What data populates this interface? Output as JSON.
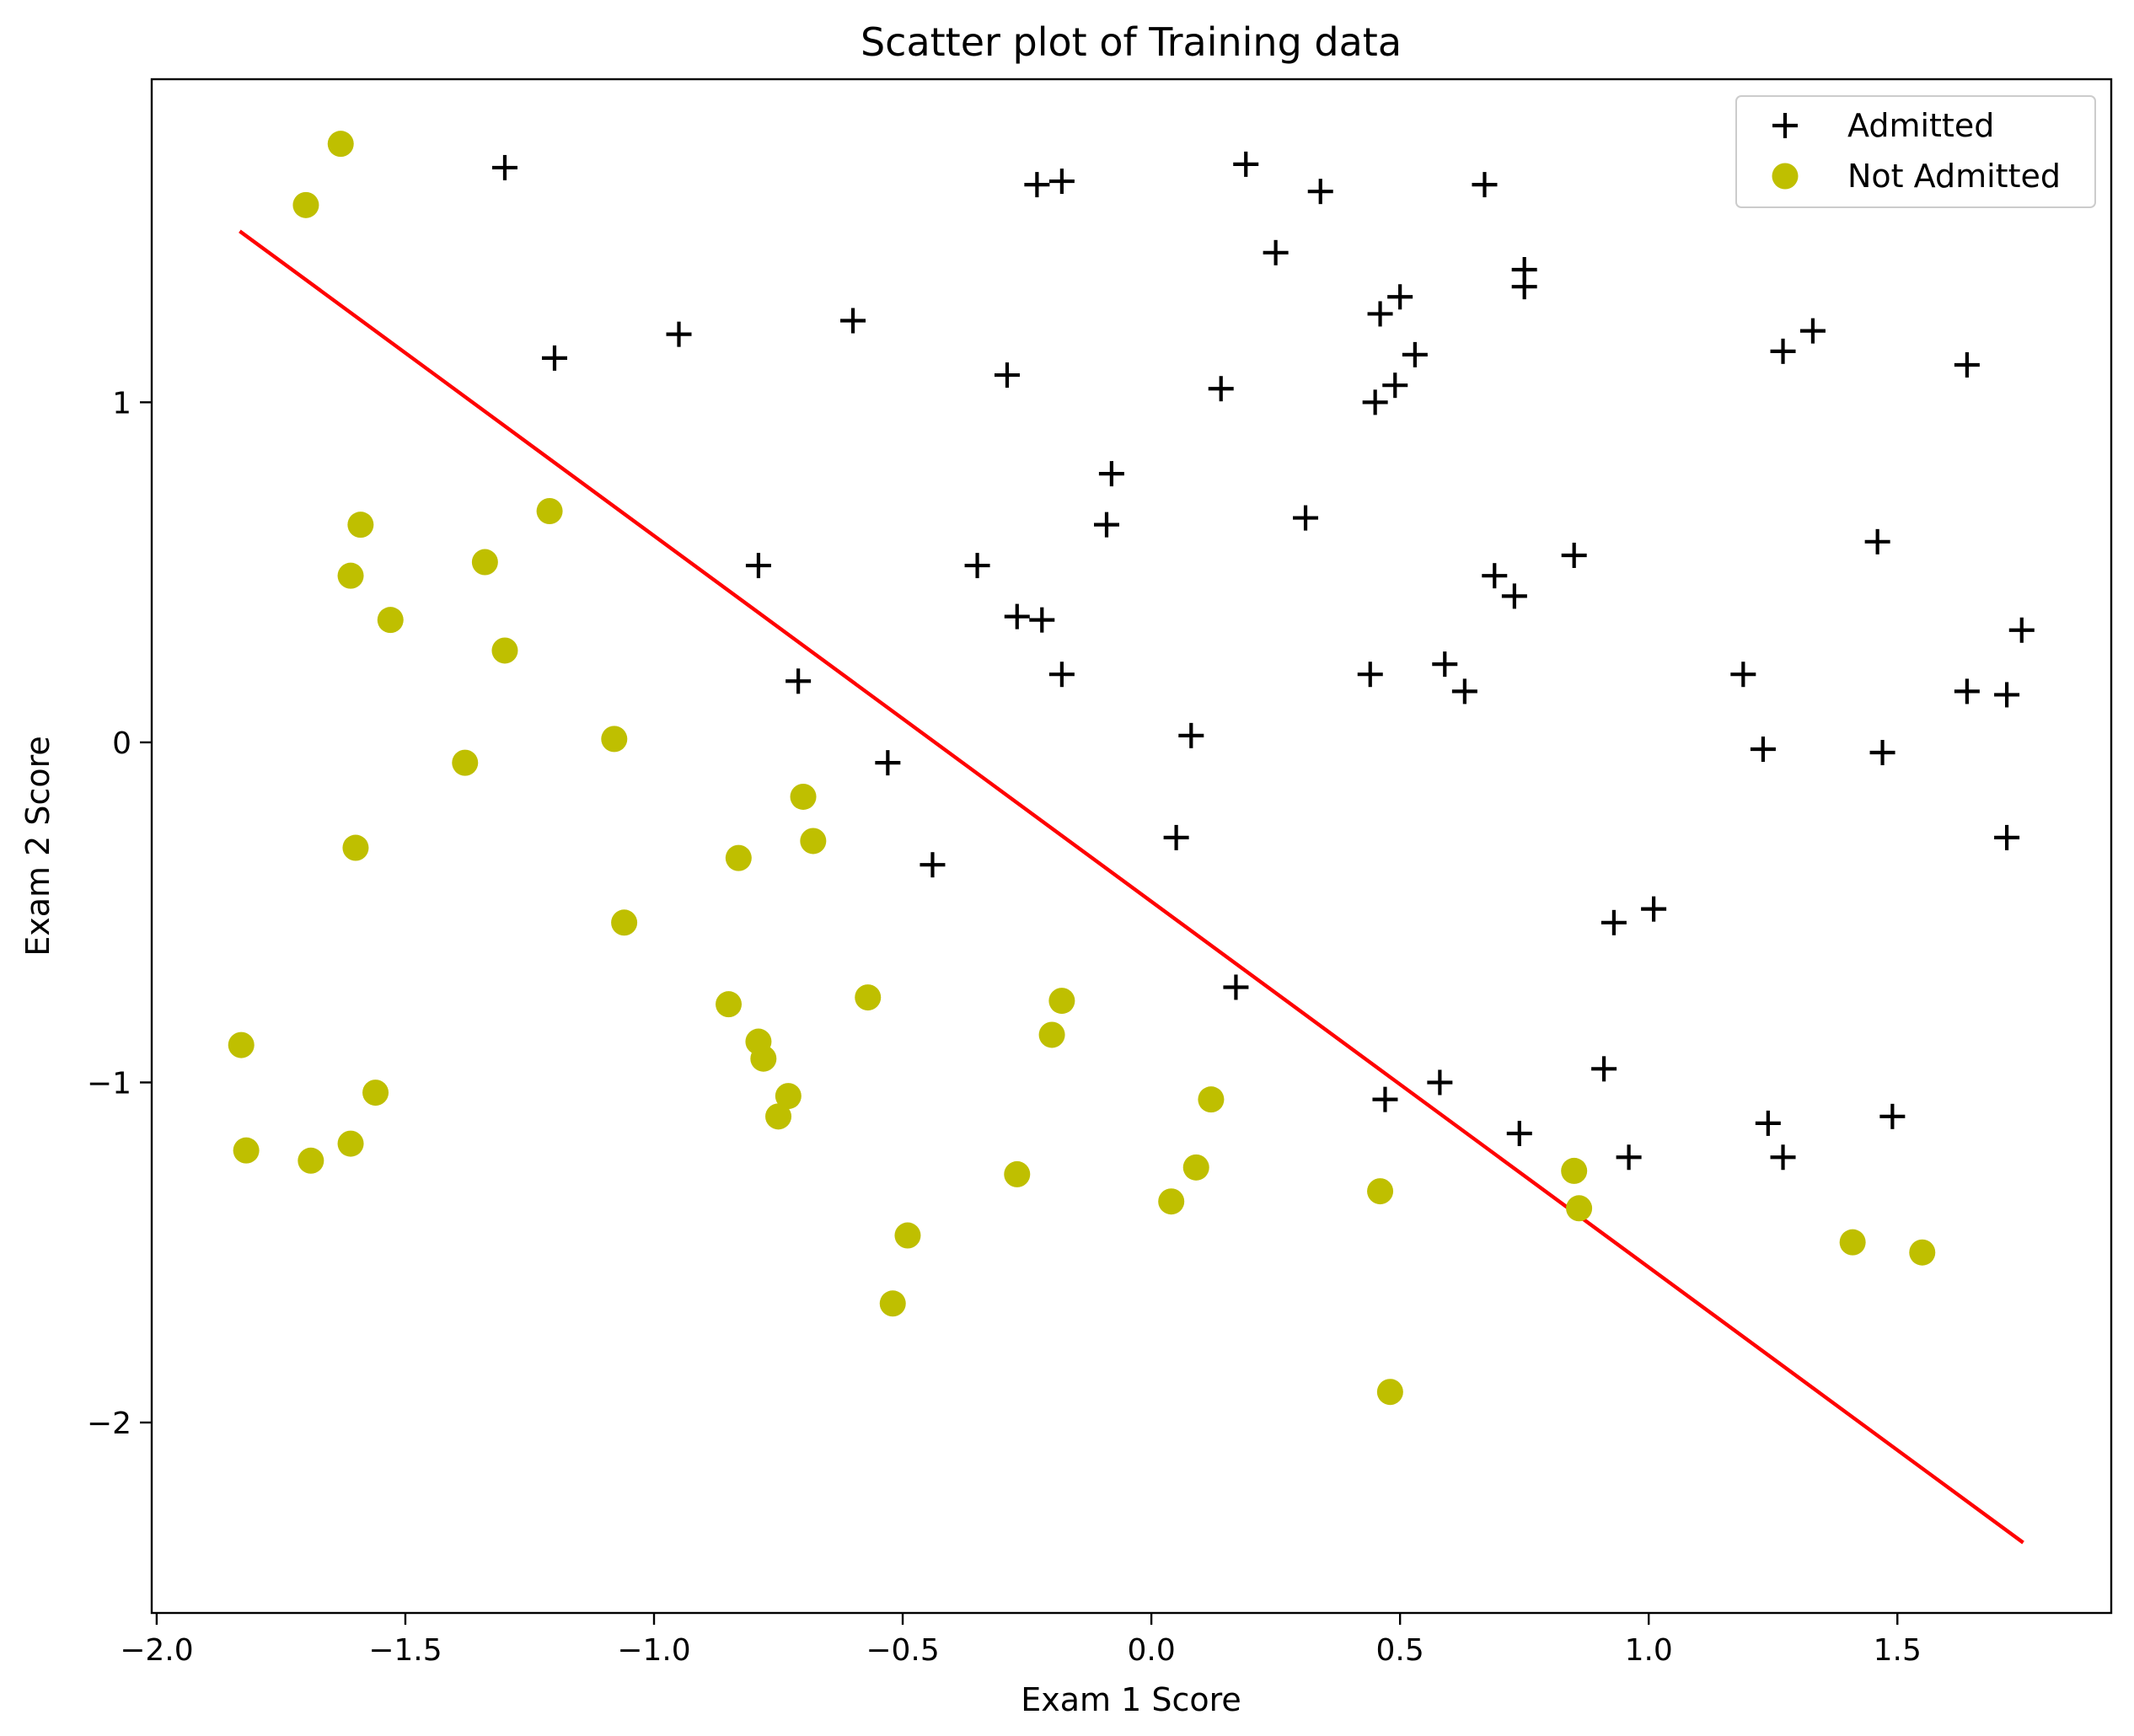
{
  "chart_data": {
    "type": "scatter",
    "title": "Scatter plot of Training data",
    "xlabel": "Exam 1 Score",
    "ylabel": "Exam 2 Score",
    "xlim": [
      -2.01,
      1.93
    ],
    "ylim": [
      -2.56,
      1.95
    ],
    "xticks": [
      -2.0,
      -1.5,
      -1.0,
      -0.5,
      0.0,
      0.5,
      1.0,
      1.5
    ],
    "xtick_labels": [
      "−2.0",
      "−1.5",
      "−1.0",
      "−0.5",
      "0.0",
      "0.5",
      "1.0",
      "1.5"
    ],
    "yticks": [
      -2,
      -1,
      0,
      1
    ],
    "ytick_labels": [
      "−2",
      "−1",
      "0",
      "1"
    ],
    "grid": false,
    "legend_position": "top-right",
    "series": [
      {
        "name": "Admitted",
        "marker": "plus",
        "color": "#000000",
        "points": [
          [
            -1.3,
            1.69
          ],
          [
            -0.23,
            1.64
          ],
          [
            -0.18,
            1.65
          ],
          [
            0.19,
            1.7
          ],
          [
            0.34,
            1.62
          ],
          [
            0.67,
            1.64
          ],
          [
            0.25,
            1.44
          ],
          [
            0.75,
            1.39
          ],
          [
            0.75,
            1.34
          ],
          [
            -1.2,
            1.13
          ],
          [
            -0.95,
            1.2
          ],
          [
            -0.6,
            1.24
          ],
          [
            -0.29,
            1.08
          ],
          [
            0.14,
            1.04
          ],
          [
            0.46,
            1.26
          ],
          [
            0.5,
            1.31
          ],
          [
            0.53,
            1.14
          ],
          [
            0.45,
            1.0
          ],
          [
            0.49,
            1.05
          ],
          [
            1.27,
            1.15
          ],
          [
            1.33,
            1.21
          ],
          [
            1.64,
            1.11
          ],
          [
            -0.08,
            0.79
          ],
          [
            -0.09,
            0.64
          ],
          [
            0.31,
            0.66
          ],
          [
            -0.79,
            0.52
          ],
          [
            -0.35,
            0.52
          ],
          [
            -0.27,
            0.37
          ],
          [
            -0.22,
            0.36
          ],
          [
            0.69,
            0.49
          ],
          [
            0.73,
            0.43
          ],
          [
            0.85,
            0.55
          ],
          [
            1.46,
            0.59
          ],
          [
            -0.71,
            0.18
          ],
          [
            -0.18,
            0.2
          ],
          [
            0.44,
            0.2
          ],
          [
            0.59,
            0.23
          ],
          [
            0.63,
            0.15
          ],
          [
            1.19,
            0.2
          ],
          [
            1.64,
            0.15
          ],
          [
            1.72,
            0.14
          ],
          [
            1.75,
            0.33
          ],
          [
            0.08,
            0.02
          ],
          [
            -0.53,
            -0.06
          ],
          [
            1.23,
            -0.02
          ],
          [
            1.47,
            -0.03
          ],
          [
            0.05,
            -0.28
          ],
          [
            -0.44,
            -0.36
          ],
          [
            1.72,
            -0.28
          ],
          [
            0.93,
            -0.53
          ],
          [
            1.01,
            -0.49
          ],
          [
            0.17,
            -0.72
          ],
          [
            0.91,
            -0.96
          ],
          [
            0.47,
            -1.05
          ],
          [
            0.58,
            -1.0
          ],
          [
            0.74,
            -1.15
          ],
          [
            0.96,
            -1.22
          ],
          [
            1.24,
            -1.12
          ],
          [
            1.27,
            -1.22
          ],
          [
            1.49,
            -1.1
          ]
        ]
      },
      {
        "name": "Not Admitted",
        "marker": "circle",
        "color": "#bfbf00",
        "points": [
          [
            -1.63,
            1.76
          ],
          [
            -1.7,
            1.58
          ],
          [
            -1.59,
            0.64
          ],
          [
            -1.61,
            0.49
          ],
          [
            -1.53,
            0.36
          ],
          [
            -1.21,
            0.68
          ],
          [
            -1.34,
            0.53
          ],
          [
            -1.3,
            0.27
          ],
          [
            -1.08,
            0.01
          ],
          [
            -1.38,
            -0.06
          ],
          [
            -1.6,
            -0.31
          ],
          [
            -0.7,
            -0.16
          ],
          [
            -0.68,
            -0.29
          ],
          [
            -0.83,
            -0.34
          ],
          [
            -1.06,
            -0.53
          ],
          [
            -0.85,
            -0.77
          ],
          [
            -0.79,
            -0.88
          ],
          [
            -0.78,
            -0.93
          ],
          [
            -0.57,
            -0.75
          ],
          [
            -0.18,
            -0.76
          ],
          [
            -0.2,
            -0.86
          ],
          [
            -1.83,
            -0.89
          ],
          [
            -1.82,
            -1.2
          ],
          [
            -1.69,
            -1.23
          ],
          [
            -1.61,
            -1.18
          ],
          [
            -1.56,
            -1.03
          ],
          [
            -0.73,
            -1.04
          ],
          [
            -0.75,
            -1.1
          ],
          [
            -0.27,
            -1.27
          ],
          [
            0.12,
            -1.05
          ],
          [
            0.09,
            -1.25
          ],
          [
            0.04,
            -1.35
          ],
          [
            -0.49,
            -1.45
          ],
          [
            -0.52,
            -1.65
          ],
          [
            0.46,
            -1.32
          ],
          [
            0.85,
            -1.26
          ],
          [
            0.86,
            -1.37
          ],
          [
            1.41,
            -1.47
          ],
          [
            1.55,
            -1.5
          ],
          [
            0.48,
            -1.91
          ]
        ]
      }
    ],
    "decision_boundary": {
      "color": "#ff0000",
      "points": [
        [
          -1.83,
          1.5
        ],
        [
          1.75,
          -2.35
        ]
      ]
    }
  }
}
